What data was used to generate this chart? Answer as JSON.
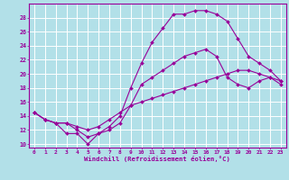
{
  "xlabel": "Windchill (Refroidissement éolien,°C)",
  "xlim": [
    -0.5,
    23.5
  ],
  "ylim": [
    9.5,
    30
  ],
  "xticks": [
    0,
    1,
    2,
    3,
    4,
    5,
    6,
    7,
    8,
    9,
    10,
    11,
    12,
    13,
    14,
    15,
    16,
    17,
    18,
    19,
    20,
    21,
    22,
    23
  ],
  "yticks": [
    10,
    12,
    14,
    16,
    18,
    20,
    22,
    24,
    26,
    28
  ],
  "bg_color": "#b2e0e8",
  "line_color": "#990099",
  "grid_color": "#ffffff",
  "line1": [
    14.5,
    13.5,
    13.0,
    11.5,
    11.5,
    10.0,
    11.5,
    12.5,
    14.0,
    18.0,
    21.5,
    24.5,
    26.5,
    28.5,
    28.5,
    29.0,
    29.0,
    28.5,
    27.5,
    25.0,
    22.5,
    21.5,
    20.5,
    19.0
  ],
  "line2": [
    14.5,
    13.5,
    13.0,
    13.0,
    12.0,
    11.0,
    11.5,
    12.0,
    13.0,
    15.5,
    18.5,
    19.5,
    20.5,
    21.5,
    22.5,
    23.0,
    23.5,
    22.5,
    19.5,
    18.5,
    18.0,
    19.0,
    19.5,
    18.5
  ],
  "line3": [
    14.5,
    13.5,
    13.0,
    13.0,
    12.5,
    12.0,
    12.5,
    13.5,
    14.5,
    15.5,
    16.0,
    16.5,
    17.0,
    17.5,
    18.0,
    18.5,
    19.0,
    19.5,
    20.0,
    20.5,
    20.5,
    20.0,
    19.5,
    19.0
  ]
}
